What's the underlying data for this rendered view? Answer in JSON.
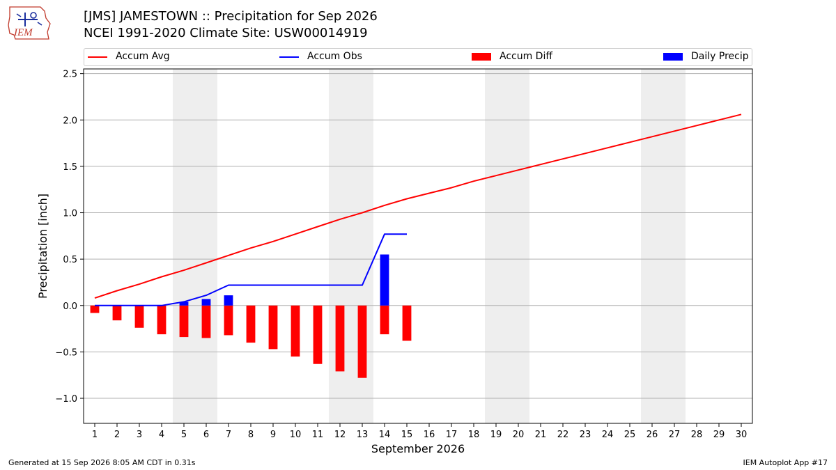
{
  "logo": {
    "text": "IEM"
  },
  "title_line1": "[JMS] JAMESTOWN :: Precipitation for Sep 2026",
  "title_line2": "NCEI 1991-2020 Climate Site: USW00014919",
  "legend": {
    "accum_avg": "Accum Avg",
    "accum_obs": "Accum Obs",
    "accum_diff": "Accum Diff",
    "daily_precip": "Daily Precip"
  },
  "colors": {
    "avg": "#ff0000",
    "obs": "#0000ff",
    "diff": "#ff0000",
    "daily": "#0000ff",
    "weekend": "#eeeeee",
    "grid": "#b0b0b0"
  },
  "chart_data": {
    "type": "bar",
    "xlabel": "September 2026",
    "ylabel": "Precipitation [inch]",
    "ylim": [
      -1.27,
      2.55
    ],
    "xlim": [
      0.5,
      30.5
    ],
    "yticks": [
      -1.0,
      -0.5,
      0.0,
      0.5,
      1.0,
      1.5,
      2.0,
      2.5
    ],
    "ytick_labels": [
      "−1.0",
      "−0.5",
      "0.0",
      "0.5",
      "1.0",
      "1.5",
      "2.0",
      "2.5"
    ],
    "days": [
      1,
      2,
      3,
      4,
      5,
      6,
      7,
      8,
      9,
      10,
      11,
      12,
      13,
      14,
      15,
      16,
      17,
      18,
      19,
      20,
      21,
      22,
      23,
      24,
      25,
      26,
      27,
      28,
      29,
      30
    ],
    "weekend_days": [
      5,
      6,
      12,
      13,
      19,
      20,
      26,
      27
    ],
    "grid": true,
    "series": [
      {
        "name": "Accum Avg",
        "kind": "line",
        "x": [
          1,
          2,
          3,
          4,
          5,
          6,
          7,
          8,
          9,
          10,
          11,
          12,
          13,
          14,
          15,
          16,
          17,
          18,
          19,
          20,
          21,
          22,
          23,
          24,
          25,
          26,
          27,
          28,
          29,
          30
        ],
        "values": [
          0.08,
          0.16,
          0.23,
          0.31,
          0.38,
          0.46,
          0.54,
          0.62,
          0.69,
          0.77,
          0.85,
          0.93,
          1.0,
          1.08,
          1.15,
          1.21,
          1.27,
          1.34,
          1.4,
          1.46,
          1.52,
          1.58,
          1.64,
          1.7,
          1.76,
          1.82,
          1.88,
          1.94,
          2.0,
          2.06
        ]
      },
      {
        "name": "Accum Obs",
        "kind": "line",
        "x": [
          1,
          2,
          3,
          4,
          5,
          6,
          7,
          8,
          9,
          10,
          11,
          12,
          13,
          14,
          15
        ],
        "values": [
          0.0,
          0.0,
          0.0,
          0.0,
          0.04,
          0.11,
          0.22,
          0.22,
          0.22,
          0.22,
          0.22,
          0.22,
          0.22,
          0.77,
          0.77
        ]
      },
      {
        "name": "Accum Diff",
        "kind": "bar",
        "x": [
          1,
          2,
          3,
          4,
          5,
          6,
          7,
          8,
          9,
          10,
          11,
          12,
          13,
          14,
          15
        ],
        "values": [
          -0.08,
          -0.16,
          -0.24,
          -0.31,
          -0.34,
          -0.35,
          -0.32,
          -0.4,
          -0.47,
          -0.55,
          -0.63,
          -0.71,
          -0.78,
          -0.31,
          -0.38
        ]
      },
      {
        "name": "Daily Precip",
        "kind": "bar",
        "x": [
          1,
          2,
          3,
          4,
          5,
          6,
          7,
          8,
          9,
          10,
          11,
          12,
          13,
          14,
          15
        ],
        "values": [
          0,
          0,
          0,
          0,
          0.04,
          0.07,
          0.11,
          0,
          0,
          0,
          0,
          0,
          0,
          0.55,
          0
        ]
      }
    ]
  },
  "footer_left": "Generated at 15 Sep 2026 8:05 AM CDT in 0.31s",
  "footer_right": "IEM Autoplot App #17"
}
